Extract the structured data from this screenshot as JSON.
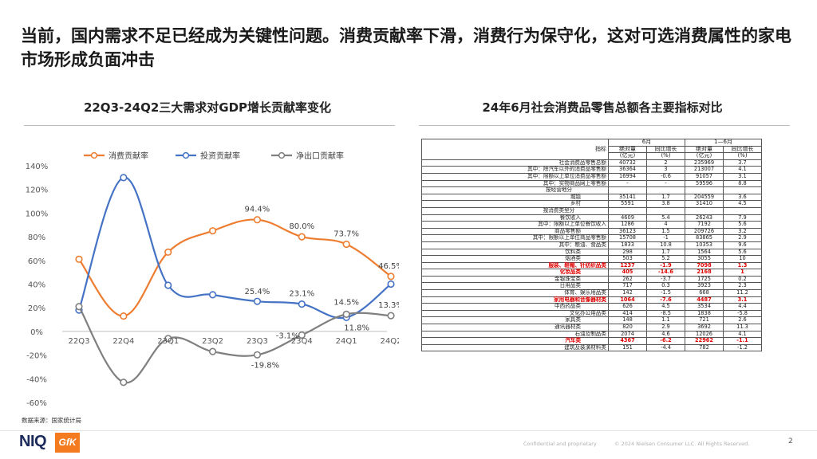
{
  "title": "当前，国内需求不足已经成为关键性问题。消费贡献率下滑，消费行为保守化，这对可选消费属性的家电市场形成负面冲击",
  "left_panel": {
    "subtitle": "22Q3-24Q2三大需求对GDP增长贡献率变化"
  },
  "right_panel": {
    "subtitle": "24年6月社会消费品零售总额各主要指标对比"
  },
  "chart_data": {
    "type": "line",
    "categories": [
      "22Q3",
      "22Q4",
      "23Q1",
      "23Q2",
      "23Q3",
      "23Q4",
      "24Q1",
      "24Q2"
    ],
    "ylim": [
      -60,
      140
    ],
    "yticks": [
      "-60%",
      "-40%",
      "-20%",
      "0%",
      "20%",
      "40%",
      "60%",
      "80%",
      "100%",
      "120%",
      "140%"
    ],
    "grid": false,
    "legend": "top",
    "series": [
      {
        "name": "消费贡献率",
        "color": "#ed7d31",
        "values": [
          61,
          13,
          67,
          85,
          94.4,
          80.0,
          73.7,
          46.5
        ],
        "labels": [
          "",
          "",
          "",
          "",
          "94.4%",
          "80.0%",
          "73.7%",
          "46.5%"
        ]
      },
      {
        "name": "投资贡献率",
        "color": "#4472c4",
        "values": [
          18,
          130,
          39,
          31,
          25.4,
          23.1,
          11.8,
          40
        ],
        "labels": [
          "",
          "",
          "",
          "",
          "25.4%",
          "23.1%",
          "11.8%",
          ""
        ]
      },
      {
        "name": "净出口贡献率",
        "color": "#7f7f7f",
        "values": [
          21,
          -43,
          -6,
          -17,
          -19.8,
          -3.1,
          14.5,
          13.3
        ],
        "labels": [
          "",
          "",
          "",
          "",
          "-19.8%",
          "-3.1%",
          "14.5%",
          "13.3%"
        ]
      }
    ]
  },
  "table": {
    "header": {
      "indicator": "指标",
      "month": "6月",
      "ytd": "1—6月",
      "abs": "绝对量",
      "yoy": "同比增长",
      "unit_abs": "(亿元)",
      "unit_yoy": "(%)"
    },
    "rows": [
      {
        "name": "社会消费品零售总额",
        "v": [
          "40732",
          "2",
          "235969",
          "3.7"
        ]
      },
      {
        "name": "其中：除汽车以外的消费品零售额",
        "v": [
          "36364",
          "3",
          "213007",
          "4.1"
        ]
      },
      {
        "name": "其中：限额以上单位消费品零售额",
        "v": [
          "16994",
          "-0.6",
          "91057",
          "3.1"
        ]
      },
      {
        "name": "其中：实物商品网上零售额",
        "v": [
          "-",
          "-",
          "59596",
          "8.8"
        ]
      },
      {
        "name": "按经营地分",
        "v": [
          "",
          "",
          "",
          ""
        ],
        "group": true
      },
      {
        "name": "城镇",
        "v": [
          "35141",
          "1.7",
          "204559",
          "3.6"
        ],
        "indent": true
      },
      {
        "name": "乡村",
        "v": [
          "5591",
          "3.8",
          "31410",
          "4.5"
        ],
        "indent": true
      },
      {
        "name": "按消费类型分",
        "v": [
          "",
          "",
          "",
          ""
        ],
        "group": true
      },
      {
        "name": "餐饮收入",
        "v": [
          "4609",
          "5.4",
          "26243",
          "7.9"
        ],
        "indent": true
      },
      {
        "name": "其中：限额以上单位餐饮收入",
        "v": [
          "1286",
          "4",
          "7192",
          "5.6"
        ]
      },
      {
        "name": "商品零售额",
        "v": [
          "36123",
          "1.5",
          "209726",
          "3.2"
        ],
        "indent": true
      },
      {
        "name": "其中：限额以上单位商品零售额",
        "v": [
          "15708",
          "-1",
          "83865",
          "2.9"
        ]
      },
      {
        "name": "其中：粮油、食品类",
        "v": [
          "1833",
          "10.8",
          "10353",
          "9.6"
        ]
      },
      {
        "name": "饮料类",
        "v": [
          "298",
          "1.7",
          "1564",
          "5.6"
        ],
        "indent": true
      },
      {
        "name": "烟酒类",
        "v": [
          "503",
          "5.2",
          "3055",
          "10"
        ],
        "indent": true
      },
      {
        "name": "服装、鞋帽、针纺织品类",
        "v": [
          "1237",
          "-1.9",
          "7098",
          "1.3"
        ],
        "hl": true
      },
      {
        "name": "化妆品类",
        "v": [
          "405",
          "-14.6",
          "2168",
          "1"
        ],
        "hl": true,
        "indent": true
      },
      {
        "name": "金银珠宝类",
        "v": [
          "262",
          "-3.7",
          "1725",
          "0.2"
        ],
        "indent": true
      },
      {
        "name": "日用品类",
        "v": [
          "717",
          "0.3",
          "3923",
          "2.3"
        ],
        "indent": true
      },
      {
        "name": "体育、娱乐用品类",
        "v": [
          "142",
          "-1.5",
          "668",
          "11.2"
        ]
      },
      {
        "name": "家用电器和音像器材类",
        "v": [
          "1064",
          "-7.6",
          "4487",
          "3.1"
        ],
        "hl": true
      },
      {
        "name": "中西药品类",
        "v": [
          "626",
          "4.5",
          "3534",
          "4.4"
        ],
        "indent": true
      },
      {
        "name": "文化办公用品类",
        "v": [
          "414",
          "-8.5",
          "1838",
          "-5.8"
        ]
      },
      {
        "name": "家具类",
        "v": [
          "148",
          "1.1",
          "721",
          "2.6"
        ],
        "indent": true
      },
      {
        "name": "通讯器材类",
        "v": [
          "820",
          "2.9",
          "3692",
          "11.3"
        ],
        "indent": true
      },
      {
        "name": "石油及制品类",
        "v": [
          "2074",
          "4.6",
          "12026",
          "4.1"
        ]
      },
      {
        "name": "汽车类",
        "v": [
          "4367",
          "-6.2",
          "22962",
          "-1.1"
        ],
        "hl": true,
        "indent": true
      },
      {
        "name": "建筑及装潢材料类",
        "v": [
          "151",
          "-4.4",
          "782",
          "-1.2"
        ]
      }
    ]
  },
  "footer": {
    "source": "数据来源：国家统计局",
    "logo_niq": "NIQ",
    "logo_gfk": "GfK",
    "confidential": "Confidential and proprietary",
    "copyright": "© 2024 Nielsen Consumer LLC. All Rights Reserved.",
    "page": "2"
  }
}
